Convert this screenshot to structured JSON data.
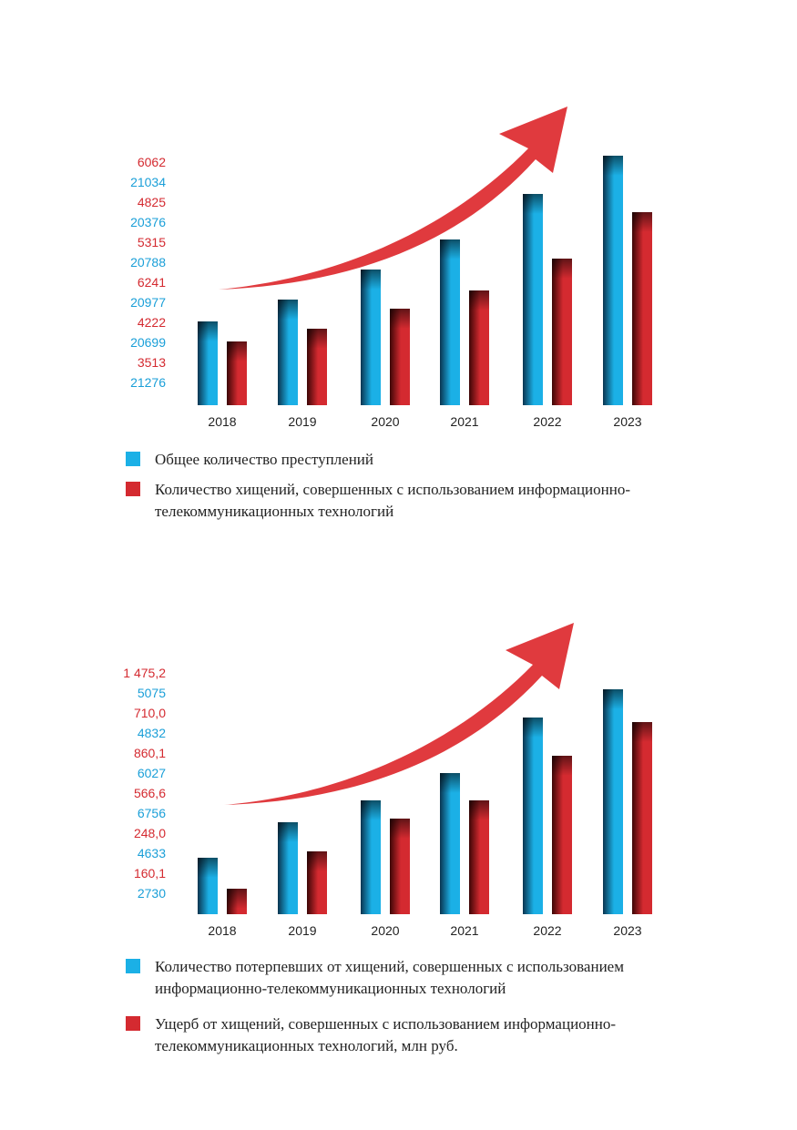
{
  "colors": {
    "blue_light": "#1bb0e6",
    "blue_dark": "#0a3550",
    "red_light": "#d42a30",
    "red_dark": "#3d0606",
    "arrow": "#e03a3e",
    "red_text": "#d42a30",
    "blue_text": "#1a9fd8"
  },
  "chart_data": [
    {
      "type": "bar",
      "categories": [
        "2018",
        "2019",
        "2020",
        "2021",
        "2022",
        "2023"
      ],
      "series": [
        {
          "name": "Общее количество преступлений",
          "values": [
            21276,
            20699,
            20977,
            20788,
            20376,
            21034
          ]
        },
        {
          "name": "Количество хищений, совершенных с использованием информационно-телекоммуникационных технологий",
          "values": [
            3513,
            4222,
            6241,
            5315,
            4825,
            6062
          ]
        }
      ],
      "value_labels": [
        "6062",
        "21034",
        "4825",
        "20376",
        "5315",
        "20788",
        "6241",
        "20977",
        "4222",
        "20699",
        "3513",
        "21276"
      ],
      "legend": [
        {
          "text": "Общее количество преступлений"
        },
        {
          "text": "Количество хищений, совершенных с использованием информационно-телекоммуникационных технологий"
        }
      ],
      "decoration": "upward red arrow"
    },
    {
      "type": "bar",
      "categories": [
        "2018",
        "2019",
        "2020",
        "2021",
        "2022",
        "2023"
      ],
      "series": [
        {
          "name": "Количество потерпевших от хищений, совершенных с использованием информационно-телекоммуникационных технологий",
          "values": [
            2730,
            4633,
            6756,
            6027,
            4832,
            5075
          ]
        },
        {
          "name": "Ущерб от хищений, совершенных с использованием информационно-телекоммуникационных технологий, млн руб.",
          "values": [
            160.1,
            248.0,
            566.6,
            860.1,
            710.0,
            1475.2
          ]
        }
      ],
      "value_labels": [
        "1 475,2",
        "5075",
        "710,0",
        "4832",
        "860,1",
        "6027",
        "566,6",
        "6756",
        "248,0",
        "4633",
        "160,1",
        "2730"
      ],
      "legend": [
        {
          "text": "Количество потерпевших от хищений, совершенных с использованием информационно-телекоммуникационных технологий"
        },
        {
          "text": "Ущерб от хищений, совершенных с использованием информационно-телекоммуникационных технологий, млн руб."
        }
      ],
      "decoration": "upward red arrow"
    }
  ]
}
